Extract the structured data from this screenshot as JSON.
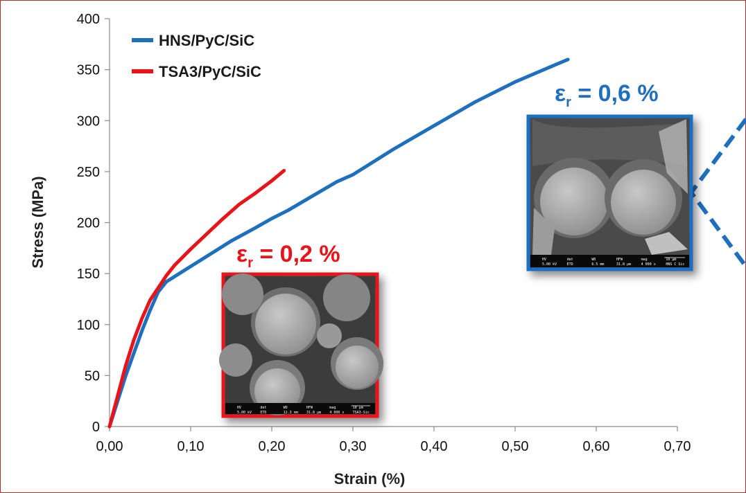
{
  "chart_data": {
    "type": "line",
    "xlabel": "Strain (%)",
    "ylabel": "Stress (MPa)",
    "xlim": [
      0,
      0.7
    ],
    "ylim": [
      0,
      400
    ],
    "x_ticks": [
      "0,00",
      "0,10",
      "0,20",
      "0,30",
      "0,40",
      "0,50",
      "0,60",
      "0,70"
    ],
    "y_ticks": [
      "0",
      "50",
      "100",
      "150",
      "200",
      "250",
      "300",
      "350",
      "400"
    ],
    "grid": false,
    "legend_position": "top-left",
    "series": [
      {
        "name": "HNS/PyC/SiC",
        "color": "#1f6fbf",
        "x": [
          0.0,
          0.01,
          0.02,
          0.03,
          0.04,
          0.05,
          0.06,
          0.07,
          0.08,
          0.1,
          0.12,
          0.15,
          0.18,
          0.2,
          0.22,
          0.25,
          0.28,
          0.3,
          0.35,
          0.4,
          0.45,
          0.5,
          0.55,
          0.565
        ],
        "y": [
          0,
          25,
          50,
          72,
          94,
          114,
          132,
          142,
          147,
          157,
          167,
          182,
          195,
          204,
          212,
          226,
          240,
          247,
          272,
          295,
          318,
          338,
          355,
          360
        ]
      },
      {
        "name": "TSA3/PyC/SiC",
        "color": "#e8141a",
        "x": [
          0.0,
          0.01,
          0.02,
          0.03,
          0.04,
          0.05,
          0.06,
          0.07,
          0.08,
          0.1,
          0.12,
          0.14,
          0.16,
          0.18,
          0.2,
          0.215
        ],
        "y": [
          0,
          30,
          60,
          85,
          106,
          124,
          136,
          148,
          158,
          174,
          189,
          204,
          218,
          229,
          241,
          251
        ]
      }
    ],
    "annotations": [
      {
        "symbol": "ε",
        "subscript": "r",
        "text": " = 0,6 %",
        "color": "#1f6fbf"
      },
      {
        "symbol": "ε",
        "subscript": "r",
        "text": " = 0,2 %",
        "color": "#e8141a"
      }
    ],
    "micrograph_labels": {
      "blue": [
        "HV",
        "det",
        "WD",
        "HFW",
        "mag",
        "10 µm",
        "5.00 kV",
        "ETD",
        "6.5 mm",
        "31.8 µm",
        "4 000 x",
        "HNS C Sic"
      ],
      "red": [
        "HV",
        "det",
        "WD",
        "HFW",
        "mag",
        "10 µm",
        "5.00 kV",
        "ETD",
        "12.3 mm",
        "31.8 µm",
        "4 000 x",
        "TSA3-Sic"
      ]
    }
  }
}
